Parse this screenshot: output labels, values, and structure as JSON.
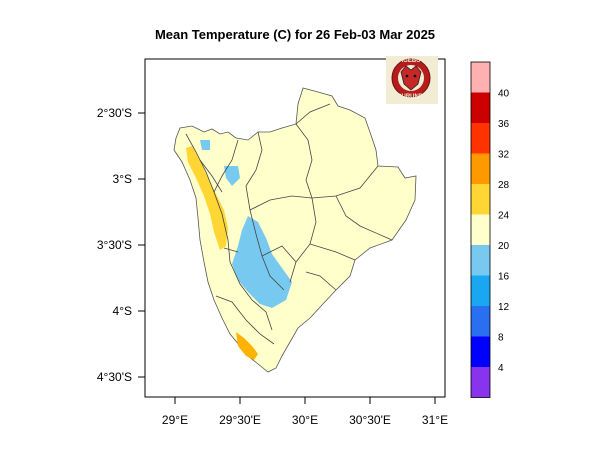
{
  "title": "Mean Temperature (C) for 26 Feb-03 Mar 2025",
  "logo": {
    "text_top": "IGEBU",
    "text_bottom": "BURUNDI"
  },
  "axes": {
    "lon_labels": [
      "29°E",
      "29°30'E",
      "30°E",
      "30°30'E",
      "31°E"
    ],
    "lat_labels": [
      "2°30'S",
      "3°S",
      "3°30'S",
      "4°S",
      "4°30'S"
    ]
  },
  "colorbar": {
    "labels": [
      "40",
      "36",
      "32",
      "28",
      "24",
      "20",
      "16",
      "12",
      "8",
      "4"
    ],
    "colors": [
      "#ffb0b0",
      "#cc0000",
      "#ff3300",
      "#ff9900",
      "#ffd633",
      "#ffffcc",
      "#77c9f0",
      "#1aa7f2",
      "#2a6ff0",
      "#0000ff",
      "#8833ee"
    ]
  }
}
